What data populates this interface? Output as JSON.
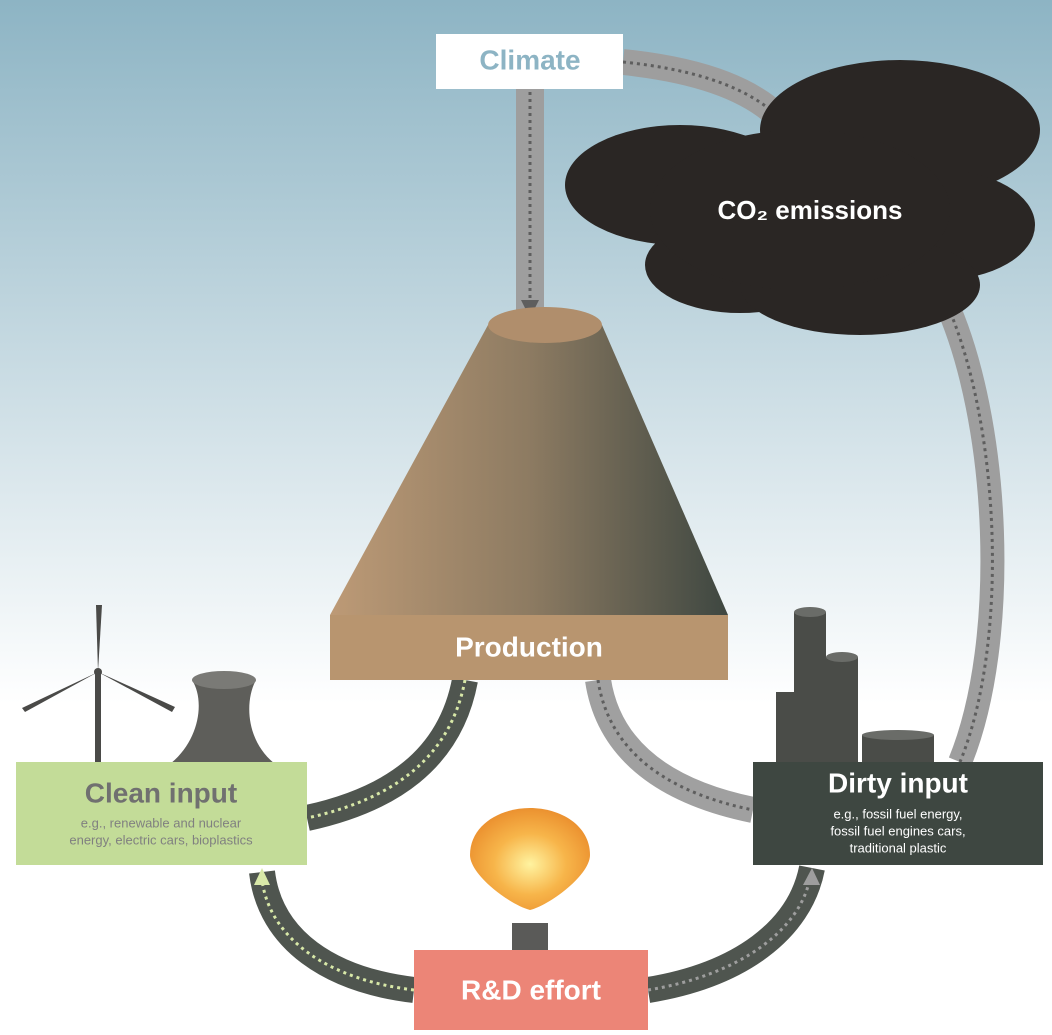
{
  "nodes": {
    "climate": {
      "label": "Climate"
    },
    "emissions": {
      "label": "CO₂ emissions"
    },
    "production": {
      "label": "Production"
    },
    "clean": {
      "label": "Clean input",
      "description": [
        "e.g., renewable and nuclear",
        "energy, electric cars, bioplastics"
      ]
    },
    "dirty": {
      "label": "Dirty input",
      "description": [
        "e.g., fossil fuel energy,",
        "fossil fuel engines cars,",
        "traditional plastic"
      ]
    },
    "rd": {
      "label": "R&D effort"
    }
  }
}
